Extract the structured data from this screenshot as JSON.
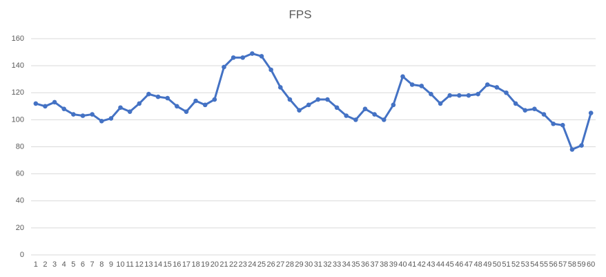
{
  "chart_data": {
    "type": "line",
    "title": "FPS",
    "categories": [
      "1",
      "2",
      "3",
      "4",
      "5",
      "6",
      "7",
      "8",
      "9",
      "10",
      "11",
      "12",
      "13",
      "14",
      "15",
      "16",
      "17",
      "18",
      "19",
      "20",
      "21",
      "22",
      "23",
      "24",
      "25",
      "26",
      "27",
      "28",
      "29",
      "30",
      "31",
      "32",
      "33",
      "34",
      "35",
      "36",
      "37",
      "38",
      "39",
      "40",
      "41",
      "42",
      "43",
      "44",
      "45",
      "46",
      "47",
      "48",
      "49",
      "50",
      "51",
      "52",
      "53",
      "54",
      "55",
      "56",
      "57",
      "58",
      "59",
      "60"
    ],
    "values": [
      112,
      110,
      113,
      108,
      104,
      103,
      104,
      99,
      101,
      109,
      106,
      112,
      119,
      117,
      116,
      110,
      106,
      114,
      111,
      115,
      139,
      146,
      146,
      149,
      147,
      137,
      124,
      115,
      107,
      111,
      115,
      115,
      109,
      103,
      100,
      108,
      104,
      100,
      111,
      132,
      126,
      125,
      119,
      112,
      118,
      118,
      118,
      119,
      126,
      124,
      120,
      112,
      107,
      108,
      104,
      97,
      96,
      78,
      81,
      105
    ],
    "color": "#4472c4",
    "ylim": [
      0,
      160
    ],
    "yticks": [
      0,
      20,
      40,
      60,
      80,
      100,
      120,
      140,
      160
    ],
    "grid": true
  }
}
